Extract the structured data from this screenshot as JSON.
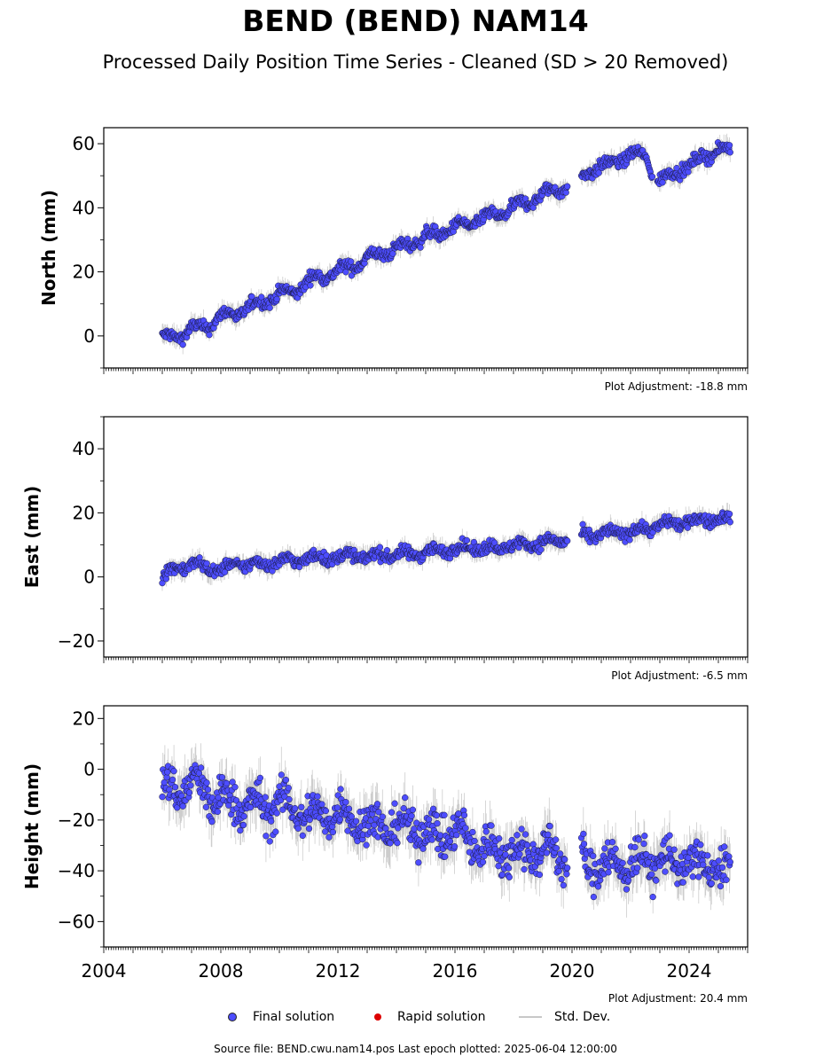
{
  "header": {
    "title": "BEND (BEND) NAM14",
    "subtitle": "Processed Daily Position Time Series - Cleaned (SD > 20 Removed)"
  },
  "legend": {
    "final": "Final solution",
    "rapid": "Rapid solution",
    "std": "Std. Dev."
  },
  "footer": "Source file: BEND.cwu.nam14.pos  Last epoch plotted: 2025-06-04 12:00:00",
  "colors": {
    "final": "#4d4dff",
    "rapid": "#dd0000",
    "stddev": "#c8c8c8"
  },
  "chart_data": [
    {
      "type": "scatter",
      "ylabel": "North (mm)",
      "ylim": [
        -10,
        65
      ],
      "yticks": [
        0,
        20,
        40,
        60
      ],
      "xlim": [
        2004,
        2026
      ],
      "adjustment": "Plot Adjustment: -18.8 mm",
      "series": [
        {
          "name": "Final solution",
          "x": [
            2006.0,
            2006.5,
            2007.0,
            2007.5,
            2008.0,
            2008.5,
            2009.0,
            2009.5,
            2010.0,
            2010.5,
            2011.0,
            2011.5,
            2012.0,
            2012.5,
            2013.0,
            2013.5,
            2014.0,
            2014.5,
            2015.0,
            2015.5,
            2016.0,
            2016.5,
            2017.0,
            2017.5,
            2018.0,
            2018.5,
            2019.0,
            2019.5,
            2019.9,
            2020.4,
            2020.9,
            2021.5,
            2022.0,
            2022.5,
            2022.9,
            2023.5,
            2024.0,
            2024.5,
            2025.0,
            2025.4
          ],
          "y": [
            0,
            -1,
            3,
            2,
            7,
            6,
            10,
            10,
            14,
            13,
            18,
            18,
            21,
            21,
            25,
            25,
            28,
            28,
            32,
            31,
            35,
            34,
            38,
            37,
            41,
            41,
            45,
            45,
            47,
            50,
            53,
            54,
            57,
            56,
            48,
            51,
            53,
            56,
            58,
            58
          ]
        }
      ]
    },
    {
      "type": "scatter",
      "ylabel": "East (mm)",
      "ylim": [
        -25,
        50
      ],
      "yticks": [
        -20,
        0,
        20,
        40
      ],
      "xlim": [
        2004,
        2026
      ],
      "adjustment": "Plot Adjustment: -6.5 mm",
      "series": [
        {
          "name": "Final solution",
          "x": [
            2006.0,
            2006.5,
            2007.0,
            2007.5,
            2008.0,
            2008.5,
            2009.0,
            2009.5,
            2010.0,
            2010.5,
            2011.0,
            2011.5,
            2012.0,
            2012.5,
            2013.0,
            2013.5,
            2014.0,
            2014.5,
            2015.0,
            2015.5,
            2016.0,
            2016.5,
            2017.0,
            2017.5,
            2018.0,
            2018.5,
            2019.0,
            2019.5,
            2019.9,
            2020.4,
            2020.9,
            2021.5,
            2022.0,
            2022.5,
            2022.9,
            2023.5,
            2024.0,
            2024.5,
            2025.0,
            2025.4
          ],
          "y": [
            0,
            3,
            4,
            3,
            2,
            4,
            4,
            4,
            5,
            5,
            6,
            6,
            6,
            7,
            6,
            7,
            7,
            7,
            8,
            8,
            9,
            9,
            9,
            9,
            10,
            10,
            11,
            11,
            12,
            13,
            13,
            14,
            14,
            15,
            16,
            17,
            17,
            18,
            18,
            18
          ]
        }
      ]
    },
    {
      "type": "scatter",
      "ylabel": "Height (mm)",
      "ylim": [
        -70,
        25
      ],
      "yticks": [
        -60,
        -40,
        -20,
        0,
        20
      ],
      "xlim": [
        2004,
        2026
      ],
      "xticks": [
        2004,
        2008,
        2012,
        2016,
        2020,
        2024
      ],
      "adjustment": "Plot Adjustment: 20.4 mm",
      "series": [
        {
          "name": "Final solution",
          "x": [
            2006.0,
            2006.5,
            2007.0,
            2007.5,
            2008.0,
            2008.5,
            2009.0,
            2009.5,
            2010.0,
            2010.5,
            2011.0,
            2011.5,
            2012.0,
            2012.5,
            2013.0,
            2013.5,
            2014.0,
            2014.5,
            2015.0,
            2015.5,
            2016.0,
            2016.5,
            2017.0,
            2017.5,
            2018.0,
            2018.5,
            2019.0,
            2019.5,
            2019.9,
            2020.4,
            2020.9,
            2021.5,
            2022.0,
            2022.5,
            2022.9,
            2023.5,
            2024.0,
            2024.5,
            2025.0,
            2025.4
          ],
          "y": [
            -8,
            -10,
            -3,
            -12,
            -10,
            -15,
            -12,
            -17,
            -12,
            -17,
            -17,
            -20,
            -15,
            -21,
            -20,
            -24,
            -21,
            -24,
            -23,
            -27,
            -23,
            -30,
            -30,
            -33,
            -31,
            -34,
            -30,
            -35,
            -34,
            -36,
            -38,
            -37,
            -38,
            -35,
            -37,
            -36,
            -38,
            -37,
            -40,
            -40
          ]
        }
      ]
    }
  ]
}
